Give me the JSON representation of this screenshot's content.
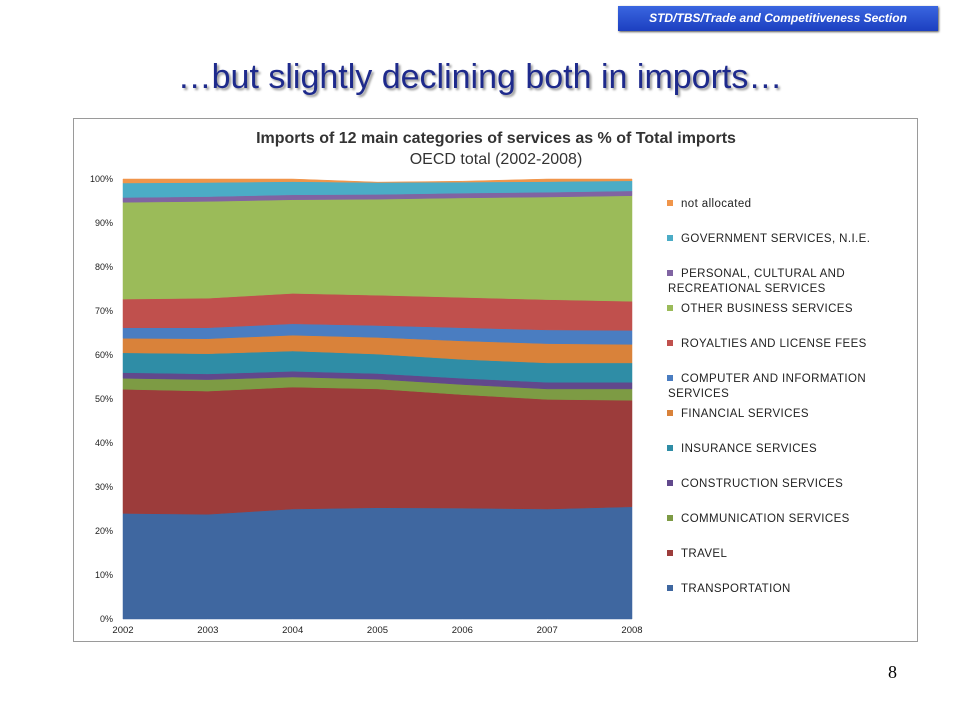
{
  "header": {
    "badge": "STD/TBS/Trade and Competitiveness Section",
    "title": "…but slightly declining both in imports…"
  },
  "page_number": "8",
  "chart_data": {
    "type": "area",
    "stacked": true,
    "percent": true,
    "title": "Imports of 12 main categories of services as % of Total imports",
    "subtitle": "OECD total (2002-2008)",
    "x": [
      "2002",
      "2003",
      "2004",
      "2005",
      "2006",
      "2007",
      "2008"
    ],
    "yticks": [
      "0%",
      "10%",
      "20%",
      "30%",
      "40%",
      "50%",
      "60%",
      "70%",
      "80%",
      "90%",
      "100%"
    ],
    "ylim": [
      0,
      100
    ],
    "legend_position": "right",
    "series": [
      {
        "name": "TRANSPORTATION",
        "color": "#3f67a0",
        "values": [
          24.0,
          23.8,
          25.0,
          25.3,
          25.2,
          25.0,
          25.5
        ]
      },
      {
        "name": "TRAVEL",
        "color": "#9c3c3b",
        "values": [
          28.2,
          28.0,
          27.7,
          27.0,
          25.8,
          24.9,
          24.2
        ]
      },
      {
        "name": "COMMUNICATION SERVICES",
        "color": "#7d9b44",
        "values": [
          2.5,
          2.6,
          2.3,
          2.2,
          2.3,
          2.4,
          2.6
        ]
      },
      {
        "name": "CONSTRUCTION SERVICES",
        "color": "#61488c",
        "values": [
          1.3,
          1.3,
          1.3,
          1.3,
          1.4,
          1.5,
          1.5
        ]
      },
      {
        "name": "INSURANCE SERVICES",
        "color": "#2f8da6",
        "values": [
          4.5,
          4.6,
          4.6,
          4.4,
          4.3,
          4.4,
          4.4
        ]
      },
      {
        "name": "FINANCIAL SERVICES",
        "color": "#d9823a",
        "values": [
          3.3,
          3.4,
          3.6,
          3.8,
          4.2,
          4.4,
          4.2
        ]
      },
      {
        "name": "COMPUTER AND INFORMATION SERVICES",
        "color": "#4a7dc1",
        "values": [
          2.4,
          2.5,
          2.6,
          2.7,
          3.0,
          3.1,
          3.2
        ]
      },
      {
        "name": "ROYALTIES AND LICENSE FEES",
        "color": "#c0504d",
        "values": [
          6.5,
          6.7,
          6.9,
          6.9,
          6.9,
          6.9,
          6.6
        ]
      },
      {
        "name": "OTHER BUSINESS SERVICES",
        "color": "#9bbb59",
        "values": [
          22.0,
          22.0,
          21.3,
          21.8,
          22.6,
          23.3,
          24.0
        ]
      },
      {
        "name": "PERSONAL, CULTURAL AND RECREATIONAL SERVICES",
        "color": "#8064a2",
        "values": [
          1.1,
          1.1,
          1.1,
          1.1,
          1.1,
          1.1,
          1.1
        ]
      },
      {
        "name": "GOVERNMENT SERVICES, N.I.E.",
        "color": "#4bacc6",
        "values": [
          3.3,
          3.2,
          3.0,
          2.7,
          2.5,
          2.4,
          2.3
        ]
      },
      {
        "name": "not allocated",
        "color": "#f0954a",
        "values": [
          0.9,
          0.8,
          0.6,
          0.1,
          0.2,
          0.6,
          0.4
        ]
      }
    ]
  }
}
